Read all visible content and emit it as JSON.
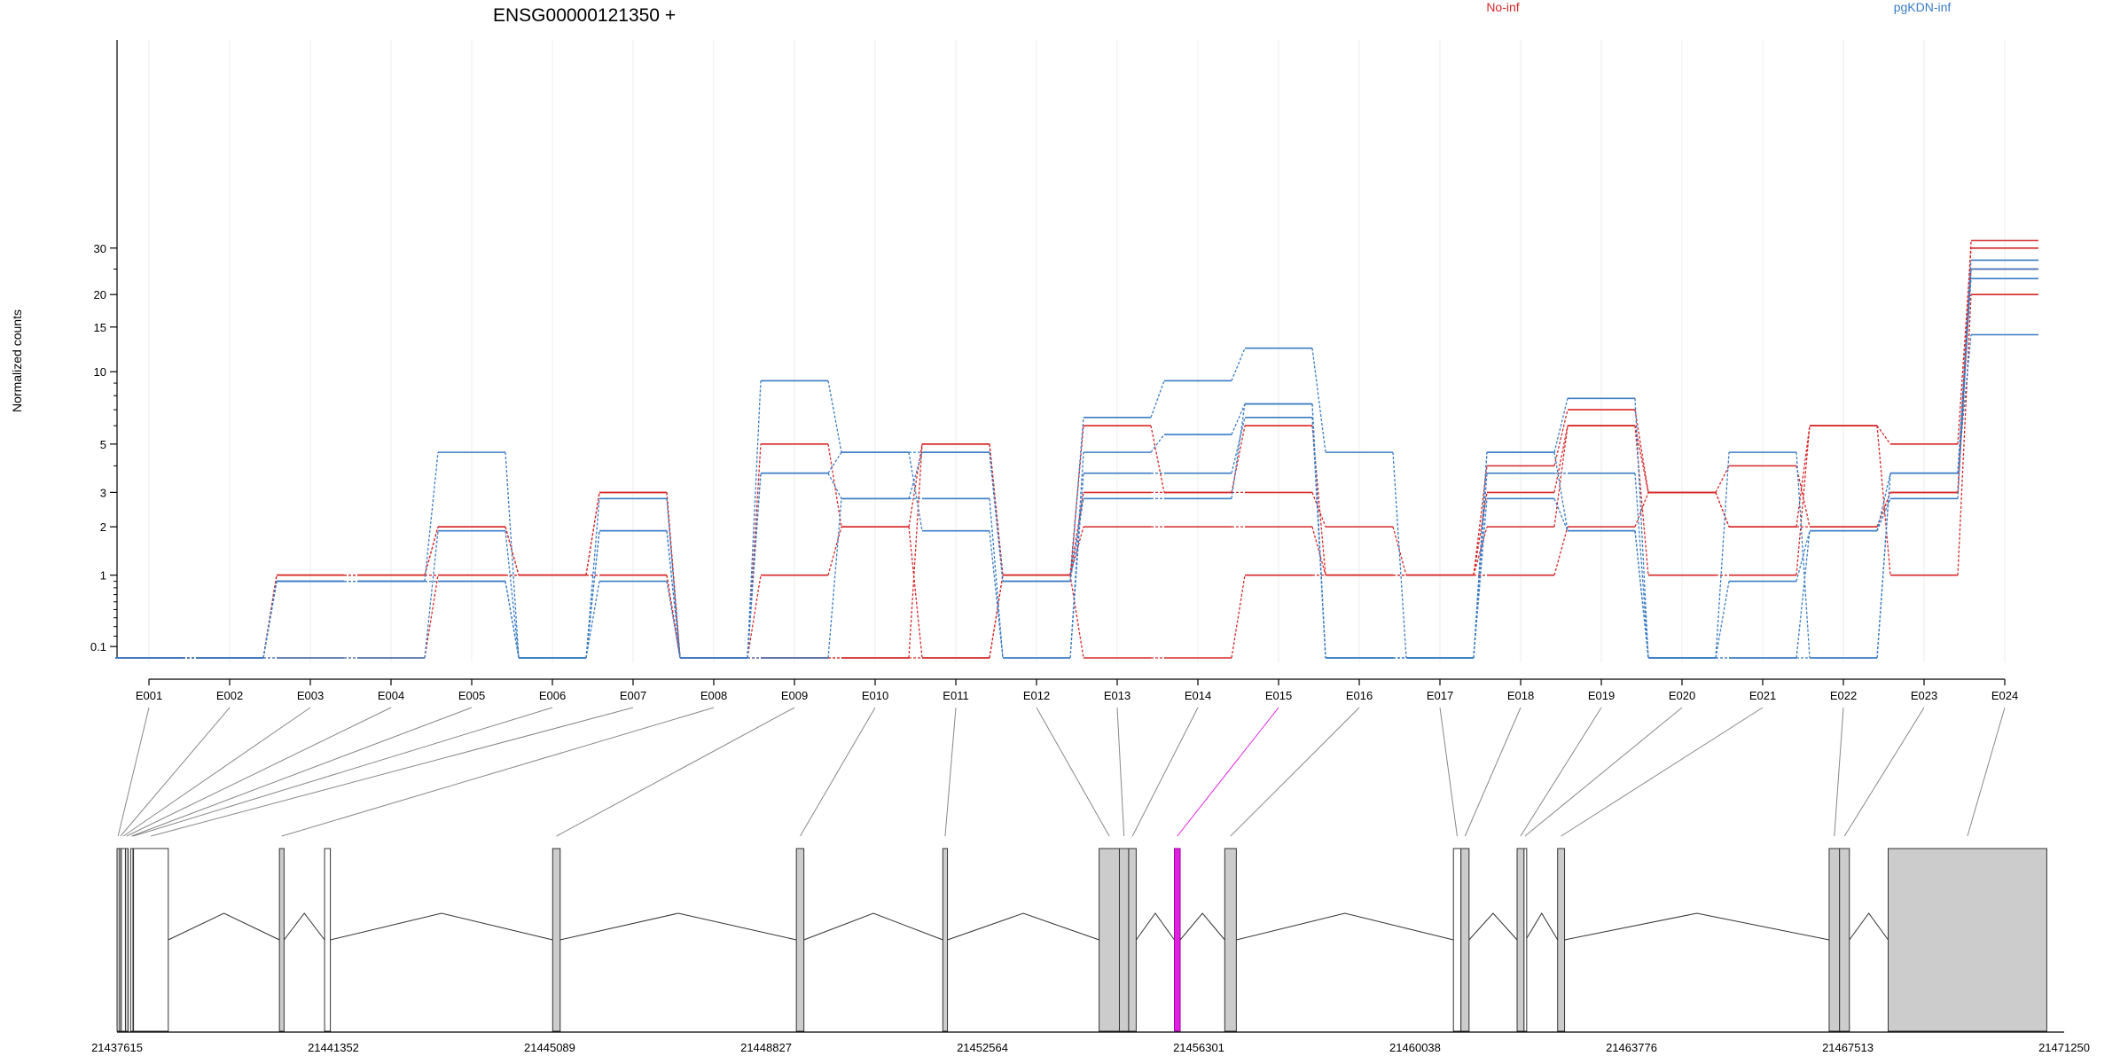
{
  "colors": {
    "no_inf": "#D62728",
    "pgkdn_inf": "#3B7CC4",
    "highlight": "#E020E0",
    "exon_fill": "#CCCCCC"
  },
  "chart_data": {
    "type": "line",
    "title": "ENSG00000121350 +",
    "ylabel": "Normalized counts",
    "yscale": "log1p",
    "yticks": [
      0.1,
      1,
      2,
      3,
      5,
      10,
      15,
      20,
      30
    ],
    "ytick_labels": [
      "0.1",
      "1",
      "2",
      "3",
      "5",
      "10",
      "15",
      "20",
      "30"
    ],
    "legend": [
      {
        "name": "No-inf",
        "color": "#D62728",
        "position": "top-center"
      },
      {
        "name": "pgKDN-inf",
        "color": "#3B7CC4",
        "position": "top-right"
      }
    ],
    "categories": [
      "E001",
      "E002",
      "E003",
      "E004",
      "E005",
      "E006",
      "E007",
      "E008",
      "E009",
      "E010",
      "E011",
      "E012",
      "E013",
      "E014",
      "E015",
      "E016",
      "E017",
      "E018",
      "E019",
      "E020",
      "E021",
      "E022",
      "E023",
      "E024"
    ],
    "series": [
      {
        "group": "No-inf",
        "values": [
          0,
          0,
          1,
          1,
          1,
          1,
          3,
          0,
          5,
          2,
          5,
          1,
          6,
          3,
          6,
          1,
          1,
          4,
          7,
          3,
          4,
          2,
          3,
          32
        ]
      },
      {
        "group": "No-inf",
        "values": [
          0,
          0,
          1,
          1,
          2,
          1,
          1,
          0,
          1,
          2,
          0,
          1,
          3,
          3,
          3,
          2,
          1,
          3,
          6,
          3,
          2,
          2,
          3,
          25
        ]
      },
      {
        "group": "No-inf",
        "values": [
          0,
          0,
          0,
          0,
          1,
          1,
          1,
          0,
          0,
          0,
          5,
          1,
          2,
          2,
          2,
          1,
          1,
          2,
          6,
          1,
          1,
          6,
          5,
          30
        ]
      },
      {
        "group": "No-inf",
        "values": [
          0,
          0,
          1,
          1,
          2,
          1,
          3,
          0,
          0,
          0,
          0,
          1,
          0,
          0,
          1,
          1,
          1,
          1,
          2,
          3,
          2,
          6,
          1,
          20
        ]
      },
      {
        "group": "pgKDN-inf",
        "values": [
          0,
          0,
          0.9,
          0.9,
          4.6,
          0,
          1.9,
          0,
          9.2,
          4.6,
          4.6,
          0.9,
          6.5,
          9.2,
          12.4,
          4.6,
          0,
          4.6,
          7.8,
          0,
          4.6,
          0,
          3.7,
          27
        ]
      },
      {
        "group": "pgKDN-inf",
        "values": [
          0,
          0,
          0.9,
          0.9,
          0.9,
          0,
          2.8,
          0,
          3.7,
          2.8,
          2.8,
          0,
          4.6,
          5.5,
          7.4,
          0,
          0,
          3.7,
          3.7,
          0,
          0,
          1.9,
          2.8,
          25
        ]
      },
      {
        "group": "pgKDN-inf",
        "values": [
          0,
          0,
          0,
          0,
          1.9,
          0,
          0.9,
          0,
          3.7,
          4.6,
          1.9,
          0,
          3.7,
          3.7,
          6.5,
          0,
          0,
          4.6,
          1.9,
          0,
          0.9,
          1.9,
          3.7,
          14
        ]
      },
      {
        "group": "pgKDN-inf",
        "values": [
          0,
          0,
          0.9,
          0.9,
          0.9,
          0,
          1.9,
          0,
          0,
          2.8,
          4.6,
          0.9,
          2.8,
          2.8,
          7.4,
          0,
          0,
          2.8,
          1.9,
          0,
          0,
          0,
          3.7,
          23
        ]
      }
    ],
    "gene_model": {
      "coord_ticks": [
        "21437615",
        "21441352",
        "21445089",
        "21448827",
        "21452564",
        "21456301",
        "21460038",
        "21463776",
        "21467513",
        "21471250"
      ],
      "coord_tick_values": [
        21437615,
        21441352,
        21445089,
        21448827,
        21452564,
        21456301,
        21460038,
        21463776,
        21467513,
        21471250
      ],
      "range": [
        21437615,
        21471250
      ],
      "highlighted_exon": "E015",
      "exons": [
        {
          "id": "E001",
          "start": 21437615,
          "end": 21437650,
          "flavor": "gray"
        },
        {
          "id": "E002",
          "start": 21437660,
          "end": 21437690,
          "flavor": "gray"
        },
        {
          "id": "E003",
          "start": 21437690,
          "end": 21437760,
          "flavor": "white"
        },
        {
          "id": "E004",
          "start": 21437760,
          "end": 21437800,
          "flavor": "gray"
        },
        {
          "id": "E005",
          "start": 21437850,
          "end": 21437880,
          "flavor": "white"
        },
        {
          "id": "E006",
          "start": 21437890,
          "end": 21437900,
          "flavor": "white"
        },
        {
          "id": "E007",
          "start": 21437900,
          "end": 21438500,
          "flavor": "white"
        },
        {
          "id": "E008",
          "start": 21440420,
          "end": 21440500,
          "flavor": "gray"
        },
        {
          "id": "E008b",
          "start": 21441200,
          "end": 21441300,
          "flavor": "white"
        },
        {
          "id": "E009",
          "start": 21445140,
          "end": 21445270,
          "flavor": "gray"
        },
        {
          "id": "E010",
          "start": 21449350,
          "end": 21449480,
          "flavor": "gray"
        },
        {
          "id": "E011",
          "start": 21451880,
          "end": 21451960,
          "flavor": "gray"
        },
        {
          "id": "E012",
          "start": 21454580,
          "end": 21454930,
          "flavor": "gray"
        },
        {
          "id": "E013",
          "start": 21454930,
          "end": 21455090,
          "flavor": "gray"
        },
        {
          "id": "E014",
          "start": 21455090,
          "end": 21455220,
          "flavor": "gray"
        },
        {
          "id": "E015",
          "start": 21455880,
          "end": 21455980,
          "flavor": "highlight"
        },
        {
          "id": "E016",
          "start": 21456750,
          "end": 21456950,
          "flavor": "gray"
        },
        {
          "id": "E017",
          "start": 21460700,
          "end": 21460830,
          "flavor": "white"
        },
        {
          "id": "E018",
          "start": 21460830,
          "end": 21460970,
          "flavor": "gray"
        },
        {
          "id": "E019",
          "start": 21461800,
          "end": 21461920,
          "flavor": "gray"
        },
        {
          "id": "E020",
          "start": 21461920,
          "end": 21461950,
          "flavor": "white"
        },
        {
          "id": "E021",
          "start": 21462500,
          "end": 21462620,
          "flavor": "gray"
        },
        {
          "id": "E022",
          "start": 21467190,
          "end": 21467370,
          "flavor": "gray"
        },
        {
          "id": "E023",
          "start": 21467370,
          "end": 21467540,
          "flavor": "gray"
        },
        {
          "id": "E024",
          "start": 21468210,
          "end": 21470950,
          "flavor": "gray"
        }
      ]
    }
  }
}
